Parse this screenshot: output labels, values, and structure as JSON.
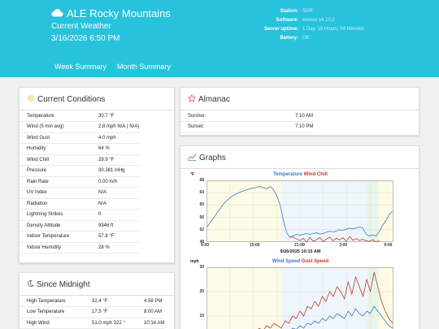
{
  "header": {
    "title": "ALE Rocky Mountains",
    "subtitle": "Current Weather",
    "datetime": "3/16/2026 6:50 PM",
    "info": [
      {
        "key": "Station:",
        "value": "SDR"
      },
      {
        "key": "Software:",
        "value": "weewx v4.10.2"
      },
      {
        "key": "Server uptime:",
        "value": "1 Day, 16 Hours, 54 Minutes"
      },
      {
        "key": "Battery:",
        "value": "OK"
      }
    ],
    "nav": [
      "Week Summary",
      "Month Summary"
    ],
    "colors": {
      "header_bg": "#27c2dc"
    }
  },
  "current_conditions": {
    "title": "Current Conditions",
    "icon": "sun-icon",
    "rows": [
      [
        "Temperature",
        "30.7 °F"
      ],
      [
        "Wind (5 min avg)",
        "2.8 mph N/A ( N/A)"
      ],
      [
        "Wind Gust",
        "4.0 mph"
      ],
      [
        "Humidity",
        "64 %"
      ],
      [
        "Wind Chill",
        "29.9 °F"
      ],
      [
        "Pressure",
        "30.381 inHg"
      ],
      [
        "Rain Rate",
        "0.00 in/h"
      ],
      [
        "UV Index",
        "N/A"
      ],
      [
        "Radiation",
        "N/A"
      ],
      [
        "Lightning Strikes",
        "0"
      ],
      [
        "Density Altitude",
        "9346 ft"
      ],
      [
        "Indoor Temperature",
        "57.8 °F"
      ],
      [
        "Indoor Humidity",
        "28 %"
      ]
    ]
  },
  "since_midnight": {
    "title": "Since Midnight",
    "icon": "moon-icon",
    "rows": [
      [
        "High Temperature",
        "32.4 °F",
        "4:58 PM"
      ],
      [
        "Low Temperature",
        "17.5 °F",
        "8:00 AM"
      ],
      [
        "High Wind",
        "51.0 mph 322 °",
        "10:14 AM"
      ]
    ]
  },
  "almanac": {
    "title": "Almanac",
    "icon": "star-icon",
    "rows": [
      [
        "Sunrise:",
        "7:10 AM"
      ],
      [
        "Sunset:",
        "7:10 PM"
      ]
    ]
  },
  "graphs": {
    "title": "Graphs",
    "icon": "chart-icon",
    "datestamp": "9/26/2025 10:15 AM"
  },
  "chart_data": [
    {
      "type": "line",
      "title_parts": [
        {
          "text": "Temperature",
          "color": "#3a78c2"
        },
        {
          "text": "Wind Chill",
          "color": "#c0392b"
        }
      ],
      "yunit": "°F",
      "ylim": [
        48,
        68
      ],
      "yticks": [
        68,
        64,
        60,
        56,
        52,
        48
      ],
      "xticks": [
        "9:00",
        "15:00",
        "21:00",
        "3:00",
        "9:00"
      ],
      "series": [
        {
          "color": "#3a78c2",
          "values": [
            53,
            54.5,
            56,
            57.5,
            59,
            60.5,
            61.5,
            62.5,
            63.2,
            63.8,
            64.2,
            64.6,
            65,
            65.3,
            65.5,
            65.8,
            66,
            65.6,
            65.3,
            66,
            65,
            63,
            60,
            55,
            51,
            49.5,
            50,
            50.5,
            50.2,
            50.5,
            50.8,
            50.5,
            50.8,
            51,
            50.6,
            50.8,
            51.2,
            51.5,
            51.3,
            51.6,
            52,
            51.8,
            52.2,
            52.5,
            52.3,
            52.6,
            52.9,
            52.5,
            50.5,
            50,
            50.3,
            50,
            51.5,
            53.5,
            55,
            57,
            58
          ]
        },
        {
          "color": "#c0392b",
          "values": [
            null,
            null,
            null,
            null,
            null,
            null,
            null,
            null,
            null,
            null,
            null,
            null,
            null,
            null,
            null,
            null,
            null,
            null,
            null,
            null,
            null,
            null,
            null,
            null,
            null,
            49.8,
            49.5,
            49,
            48.5,
            49.2,
            48,
            49.5,
            48.2,
            48.8,
            49.5,
            48.1,
            49,
            49.6,
            48.4,
            49.2,
            48.7,
            49.4,
            48.3,
            49.8,
            48.6,
            49.1,
            48.5,
            48.9,
            48.4,
            48.2,
            48.8,
            48,
            48.5,
            null,
            null,
            null,
            null
          ]
        }
      ]
    },
    {
      "type": "line",
      "title_parts": [
        {
          "text": "Wind Speed",
          "color": "#3a78c2"
        },
        {
          "text": "Gust Speed",
          "color": "#c0392b"
        }
      ],
      "yunit": "mph",
      "ylim": [
        0,
        30
      ],
      "yticks": [
        30,
        20,
        10
      ],
      "series": [
        {
          "color": "#3a78c2",
          "values": [
            0.5,
            0.3,
            0.8,
            0.4,
            1,
            0.6,
            0.9,
            0.5,
            1.2,
            0.8,
            1.5,
            1,
            2,
            1.5,
            2.5,
            2,
            3,
            2.5,
            3.5,
            3,
            2.5,
            4,
            3.5,
            5,
            4.5,
            6,
            5,
            7,
            6.5,
            8,
            7,
            9,
            8,
            10,
            9,
            11,
            10,
            9,
            12,
            10,
            13,
            11,
            10,
            12,
            11,
            14,
            12,
            10,
            8,
            6,
            5
          ]
        },
        {
          "color": "#c0392b",
          "values": [
            1,
            0.5,
            1.5,
            1,
            2,
            1.2,
            1.8,
            1,
            2.5,
            1.5,
            3,
            2,
            4,
            3,
            5,
            4,
            6,
            5,
            7,
            6,
            5,
            8,
            7,
            10,
            9,
            12,
            10,
            14,
            13,
            16,
            14,
            18,
            16,
            20,
            18,
            22,
            20,
            17,
            24,
            19,
            26,
            22,
            18,
            25,
            20,
            28,
            22,
            16,
            12,
            9,
            7
          ]
        }
      ]
    }
  ]
}
